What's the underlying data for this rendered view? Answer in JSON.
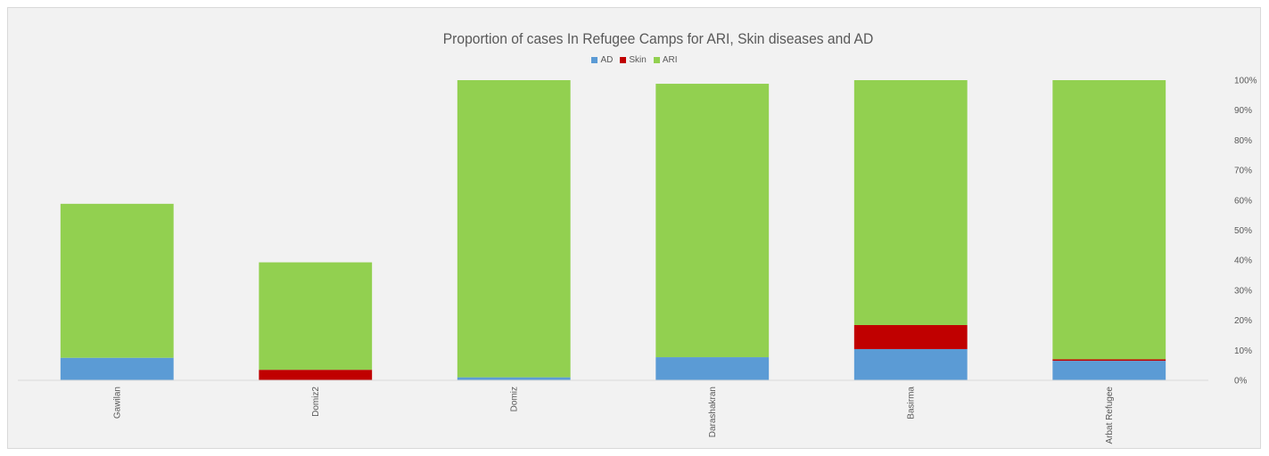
{
  "chart_data": {
    "type": "bar",
    "stacked": true,
    "title": "Proportion of cases In Refugee Camps for ARI, Skin diseases and AD",
    "categories": [
      "Gawilan",
      "Domiz2",
      "Domiz",
      "Darashakran",
      "Basirma",
      "Arbat Refugee"
    ],
    "series": [
      {
        "name": "AD",
        "color": "#5b9bd5",
        "values": [
          7.5,
          0,
          1.0,
          7.7,
          10.4,
          6.5
        ]
      },
      {
        "name": "Skin",
        "color": "#c00000",
        "values": [
          0,
          3.5,
          0,
          0,
          8.0,
          0.5
        ]
      },
      {
        "name": "ARI",
        "color": "#92d050",
        "values": [
          51.3,
          35.8,
          99.0,
          91.1,
          81.6,
          93.0
        ]
      }
    ],
    "ylim": [
      0,
      100
    ],
    "yticks": [
      "0%",
      "10%",
      "20%",
      "30%",
      "40%",
      "50%",
      "60%",
      "70%",
      "80%",
      "90%",
      "100%"
    ],
    "y_axis_side": "right",
    "legend_position": "top",
    "grid": false
  }
}
